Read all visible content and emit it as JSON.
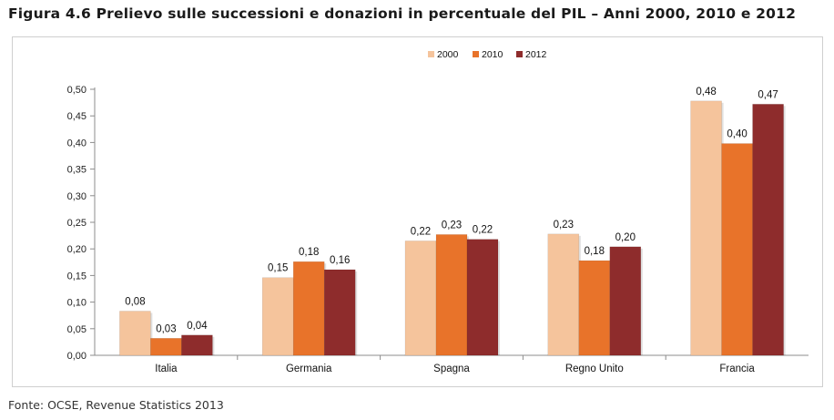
{
  "title": "Figura 4.6 Prelievo sulle successioni e donazioni in percentuale del PIL – Anni 2000, 2010 e 2012",
  "source": "Fonte: OCSE, Revenue Statistics 2013",
  "chart_data": {
    "type": "bar",
    "categories": [
      "Italia",
      "Germania",
      "Spagna",
      "Regno Unito",
      "Francia"
    ],
    "series": [
      {
        "name": "2000",
        "color": "#f5c49c",
        "values": [
          0.083,
          0.146,
          0.215,
          0.228,
          0.478
        ],
        "labels": [
          "0,08",
          "0,15",
          "0,22",
          "0,23",
          "0,48"
        ]
      },
      {
        "name": "2010",
        "color": "#e8732a",
        "values": [
          0.032,
          0.176,
          0.227,
          0.178,
          0.398
        ],
        "labels": [
          "0,03",
          "0,18",
          "0,23",
          "0,18",
          "0,40"
        ]
      },
      {
        "name": "2012",
        "color": "#8e2c2c",
        "values": [
          0.038,
          0.161,
          0.218,
          0.204,
          0.472
        ],
        "labels": [
          "0,04",
          "0,16",
          "0,22",
          "0,20",
          "0,47"
        ]
      }
    ],
    "yticks": [
      "0,00",
      "0,05",
      "0,10",
      "0,15",
      "0,20",
      "0,25",
      "0,30",
      "0,35",
      "0,40",
      "0,45",
      "0,50"
    ],
    "ylim": [
      0,
      0.5
    ],
    "grid": false,
    "legend_position": "top-center"
  }
}
